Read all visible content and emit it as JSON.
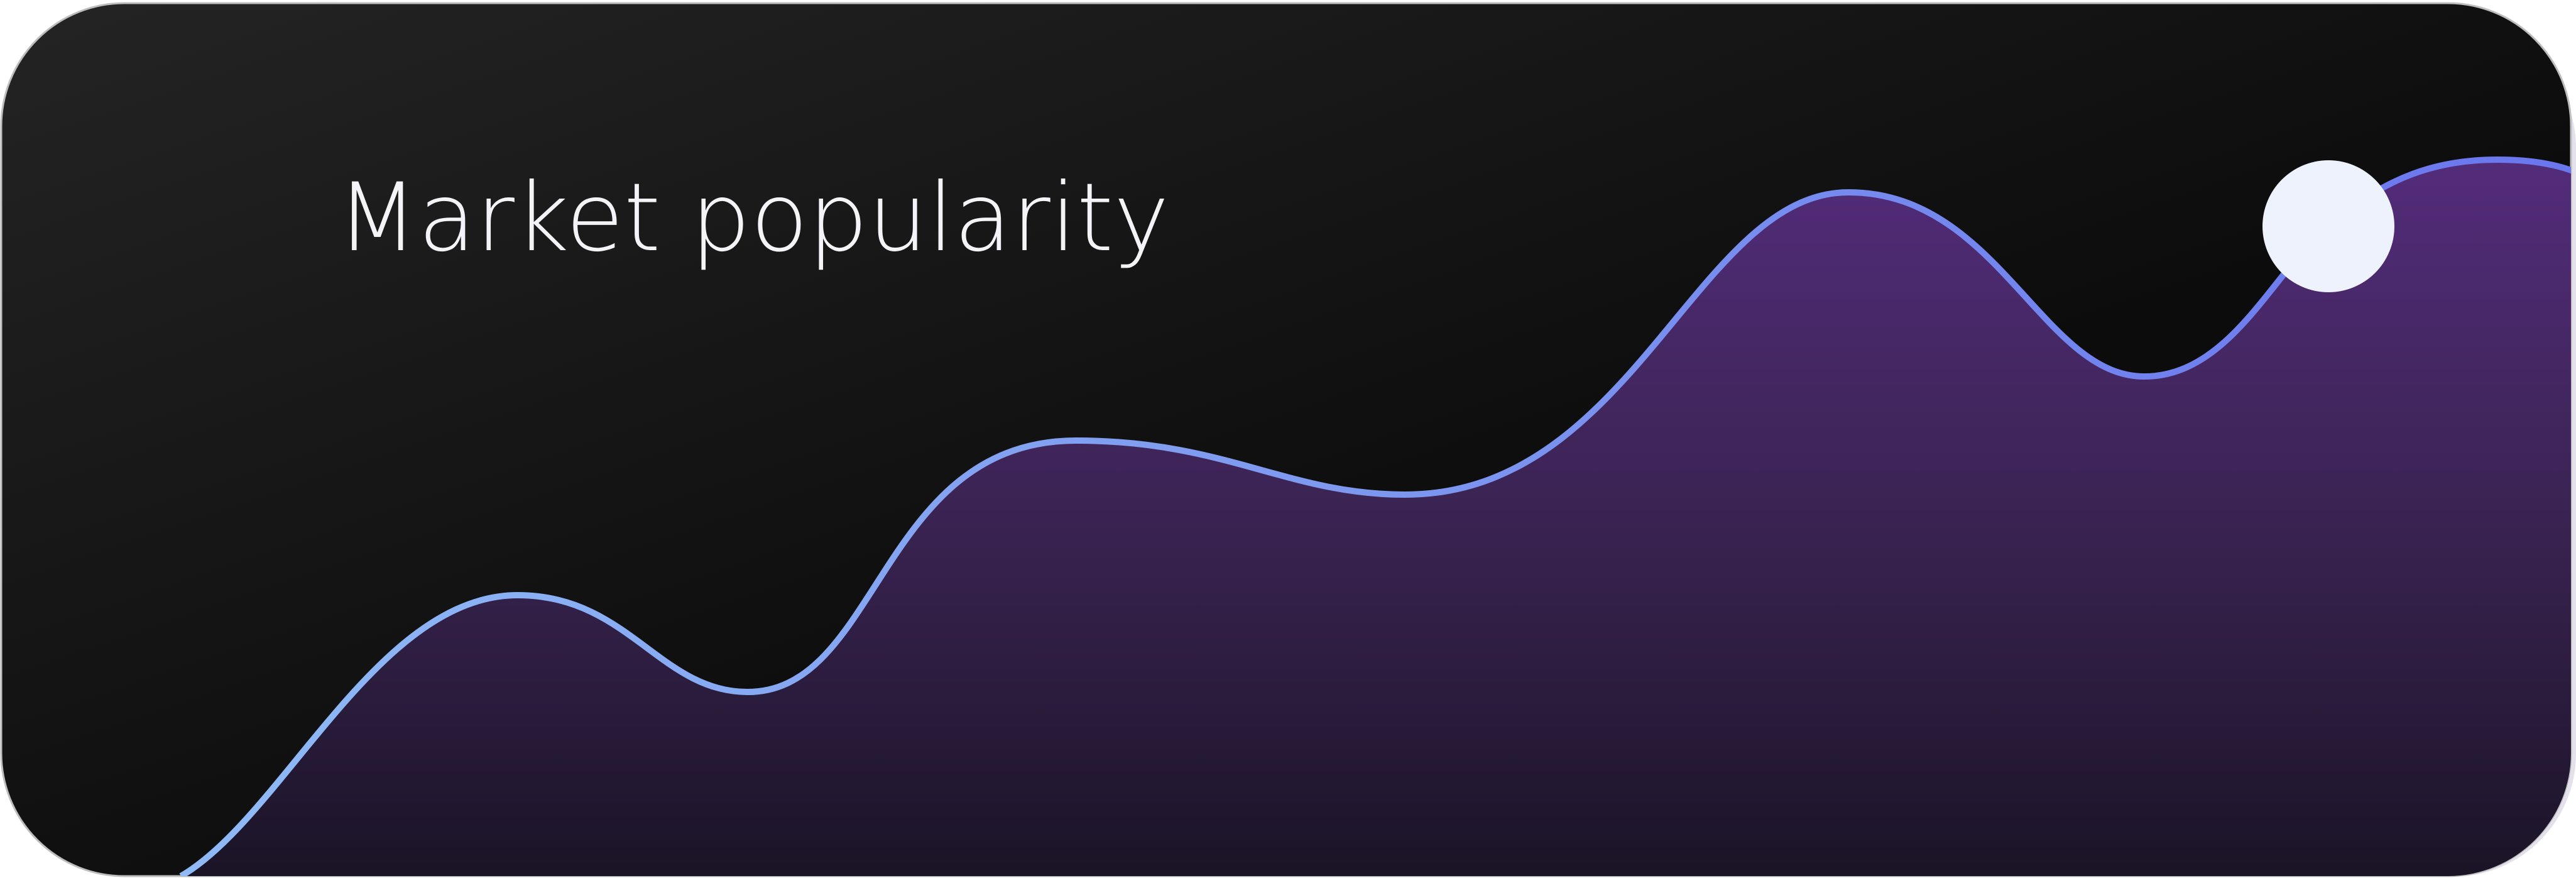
{
  "title": "Market popularity"
}
